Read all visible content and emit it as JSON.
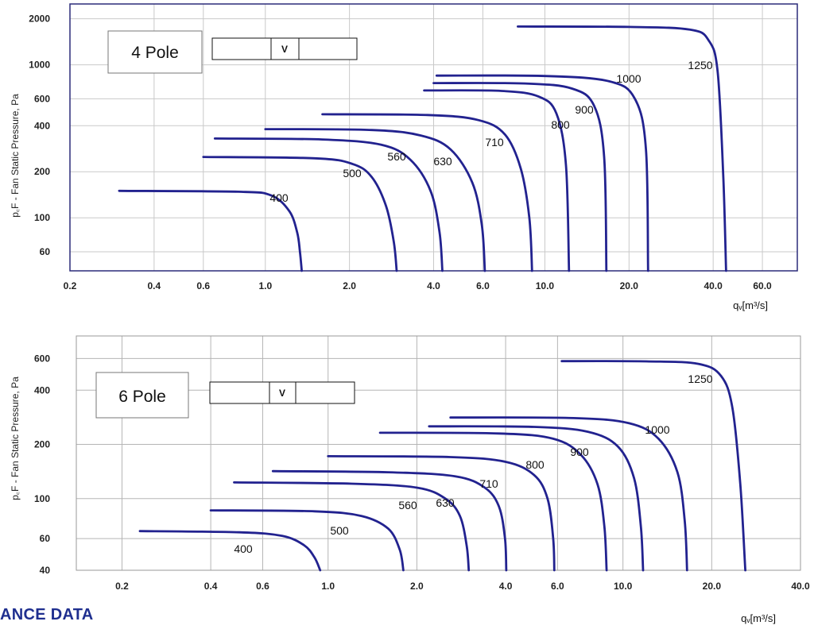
{
  "footer_text": "ANCE DATA",
  "chart_data": [
    {
      "type": "line",
      "title": "4 Pole",
      "title_box_symbol": "V",
      "xlabel": "qᵥ[m³/s]",
      "ylabel": "p꜀F - Fan Static Pressure, Pa",
      "x_scale": "log",
      "y_scale": "log",
      "xlim": [
        0.2,
        80
      ],
      "ylim": [
        45,
        2500
      ],
      "x_ticks": [
        0.2,
        0.4,
        0.6,
        1.0,
        2.0,
        4.0,
        6.0,
        10.0,
        20.0,
        40.0,
        60.0
      ],
      "x_tick_labels": [
        "0.2",
        "0.4",
        "0.6",
        "1.0",
        "2.0",
        "4.0",
        "6.0",
        "10.0",
        "20.0",
        "40.0",
        "60.0"
      ],
      "y_ticks": [
        60,
        100,
        200,
        400,
        600,
        1000,
        2000
      ],
      "y_tick_labels": [
        "60",
        "100",
        "200",
        "400",
        "600",
        "1000",
        "2000"
      ],
      "grid": true,
      "line_color": "#22228f",
      "series": [
        {
          "name": "400",
          "x": [
            0.3,
            0.8,
            1.05,
            1.22,
            1.3,
            1.33,
            1.35
          ],
          "y": [
            150,
            148,
            140,
            110,
            80,
            60,
            45
          ]
        },
        {
          "name": "500",
          "x": [
            0.6,
            1.5,
            2.05,
            2.4,
            2.7,
            2.88,
            2.95
          ],
          "y": [
            250,
            245,
            225,
            185,
            120,
            70,
            45
          ]
        },
        {
          "name": "560",
          "x": [
            0.66,
            1.6,
            2.6,
            3.3,
            3.9,
            4.2,
            4.3
          ],
          "y": [
            330,
            325,
            300,
            240,
            150,
            80,
            45
          ]
        },
        {
          "name": "630",
          "x": [
            1.0,
            2.4,
            3.6,
            4.6,
            5.5,
            5.95,
            6.1
          ],
          "y": [
            380,
            375,
            345,
            280,
            170,
            90,
            45
          ]
        },
        {
          "name": "710",
          "x": [
            1.6,
            3.8,
            5.8,
            7.2,
            8.2,
            8.8,
            9.0
          ],
          "y": [
            475,
            470,
            435,
            350,
            210,
            100,
            45
          ]
        },
        {
          "name": "800",
          "x": [
            3.7,
            7.0,
            9.5,
            11.0,
            11.9,
            12.2
          ],
          "y": [
            680,
            675,
            620,
            480,
            220,
            45
          ]
        },
        {
          "name": "900",
          "x": [
            4.0,
            8.5,
            12.5,
            15.0,
            16.3,
            16.6
          ],
          "y": [
            760,
            755,
            700,
            540,
            250,
            45
          ]
        },
        {
          "name": "1000",
          "x": [
            4.1,
            10.0,
            17.0,
            21.0,
            23.0,
            23.4
          ],
          "y": [
            850,
            845,
            780,
            600,
            280,
            45
          ]
        },
        {
          "name": "1250",
          "x": [
            8.0,
            20.0,
            33.0,
            38.5,
            41.5,
            43.5,
            44.5
          ],
          "y": [
            1780,
            1770,
            1700,
            1450,
            900,
            180,
            45
          ]
        }
      ]
    },
    {
      "type": "line",
      "title": "6 Pole",
      "title_box_symbol": "V",
      "xlabel": "qᵥ[m³/s]",
      "ylabel": "p꜀F - Fan Static Pressure, Pa",
      "x_scale": "log",
      "y_scale": "log",
      "xlim": [
        0.14,
        40
      ],
      "ylim": [
        40,
        800
      ],
      "x_ticks": [
        0.2,
        0.4,
        0.6,
        1.0,
        2.0,
        4.0,
        6.0,
        10.0,
        20.0,
        40.0
      ],
      "x_tick_labels": [
        "0.2",
        "0.4",
        "0.6",
        "1.0",
        "2.0",
        "4.0",
        "6.0",
        "10.0",
        "20.0",
        "40.0"
      ],
      "y_ticks": [
        40,
        60,
        100,
        200,
        400,
        600
      ],
      "y_tick_labels": [
        "40",
        "60",
        "100",
        "200",
        "400",
        "600"
      ],
      "grid": true,
      "line_color": "#22228f",
      "series": [
        {
          "name": "400",
          "x": [
            0.23,
            0.5,
            0.7,
            0.83,
            0.9,
            0.94
          ],
          "y": [
            66,
            65,
            62,
            55,
            47,
            40
          ]
        },
        {
          "name": "500",
          "x": [
            0.4,
            0.9,
            1.3,
            1.6,
            1.75,
            1.8
          ],
          "y": [
            86,
            85,
            80,
            68,
            52,
            40
          ]
        },
        {
          "name": "560",
          "x": [
            0.48,
            1.2,
            2.0,
            2.5,
            2.8,
            2.95,
            3.0
          ],
          "y": [
            123,
            121,
            115,
            100,
            80,
            55,
            40
          ]
        },
        {
          "name": "630",
          "x": [
            0.65,
            1.6,
            2.7,
            3.4,
            3.8,
            3.98,
            4.02
          ],
          "y": [
            142,
            140,
            133,
            115,
            90,
            60,
            40
          ]
        },
        {
          "name": "710",
          "x": [
            1.0,
            2.6,
            4.0,
            5.0,
            5.55,
            5.8,
            5.85
          ],
          "y": [
            172,
            170,
            160,
            135,
            100,
            60,
            40
          ]
        },
        {
          "name": "800",
          "x": [
            1.5,
            3.8,
            5.8,
            7.2,
            8.2,
            8.65,
            8.8
          ],
          "y": [
            232,
            230,
            215,
            175,
            120,
            70,
            40
          ]
        },
        {
          "name": "900",
          "x": [
            2.2,
            5.0,
            7.6,
            9.6,
            10.9,
            11.5,
            11.7
          ],
          "y": [
            252,
            250,
            235,
            195,
            130,
            70,
            40
          ]
        },
        {
          "name": "1000",
          "x": [
            2.6,
            6.8,
            10.5,
            13.2,
            15.3,
            16.2,
            16.5
          ],
          "y": [
            282,
            280,
            262,
            215,
            140,
            75,
            40
          ]
        },
        {
          "name": "1250",
          "x": [
            6.2,
            12.0,
            18.0,
            21.5,
            23.5,
            25.0,
            26.0
          ],
          "y": [
            580,
            578,
            560,
            480,
            320,
            120,
            40
          ]
        }
      ]
    }
  ]
}
